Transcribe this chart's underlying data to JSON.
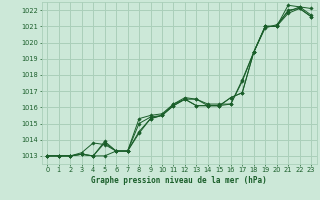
{
  "title": "Graphe pression niveau de la mer (hPa)",
  "bg_color": "#cce8d8",
  "grid_color": "#aacfba",
  "line_color": "#1a5e2a",
  "marker_color": "#1a5e2a",
  "xlim": [
    -0.5,
    23.5
  ],
  "ylim": [
    1012.5,
    1022.5
  ],
  "yticks": [
    1013,
    1014,
    1015,
    1016,
    1017,
    1018,
    1019,
    1020,
    1021,
    1022
  ],
  "xticks": [
    0,
    1,
    2,
    3,
    4,
    5,
    6,
    7,
    8,
    9,
    10,
    11,
    12,
    13,
    14,
    15,
    16,
    17,
    18,
    19,
    20,
    21,
    22,
    23
  ],
  "series": [
    [
      1013.0,
      1013.0,
      1013.0,
      1013.1,
      1013.0,
      1013.8,
      1013.3,
      1013.3,
      1014.4,
      1015.3,
      1015.5,
      1016.1,
      1016.5,
      1016.1,
      1016.1,
      1016.1,
      1016.6,
      1016.9,
      1019.4,
      1021.0,
      1021.0,
      1021.8,
      1022.1,
      1021.6
    ],
    [
      1013.0,
      1013.0,
      1013.0,
      1013.2,
      1013.8,
      1013.7,
      1013.3,
      1013.3,
      1014.5,
      1015.3,
      1015.5,
      1016.2,
      1016.6,
      1016.5,
      1016.2,
      1016.2,
      1016.2,
      1017.7,
      1019.4,
      1020.9,
      1021.1,
      1021.9,
      1022.2,
      1021.7
    ],
    [
      1013.0,
      1013.0,
      1013.0,
      1013.1,
      1013.0,
      1013.9,
      1013.3,
      1013.3,
      1015.0,
      1015.4,
      1015.5,
      1016.1,
      1016.5,
      1016.1,
      1016.1,
      1016.1,
      1016.6,
      1016.9,
      1019.4,
      1021.0,
      1021.0,
      1022.3,
      1022.2,
      1022.1
    ],
    [
      1013.0,
      1013.0,
      1013.0,
      1013.1,
      1013.0,
      1013.0,
      1013.3,
      1013.3,
      1015.3,
      1015.5,
      1015.6,
      1016.2,
      1016.5,
      1016.5,
      1016.1,
      1016.1,
      1016.2,
      1017.6,
      1019.4,
      1021.0,
      1021.0,
      1022.0,
      1022.1,
      1021.6
    ]
  ]
}
